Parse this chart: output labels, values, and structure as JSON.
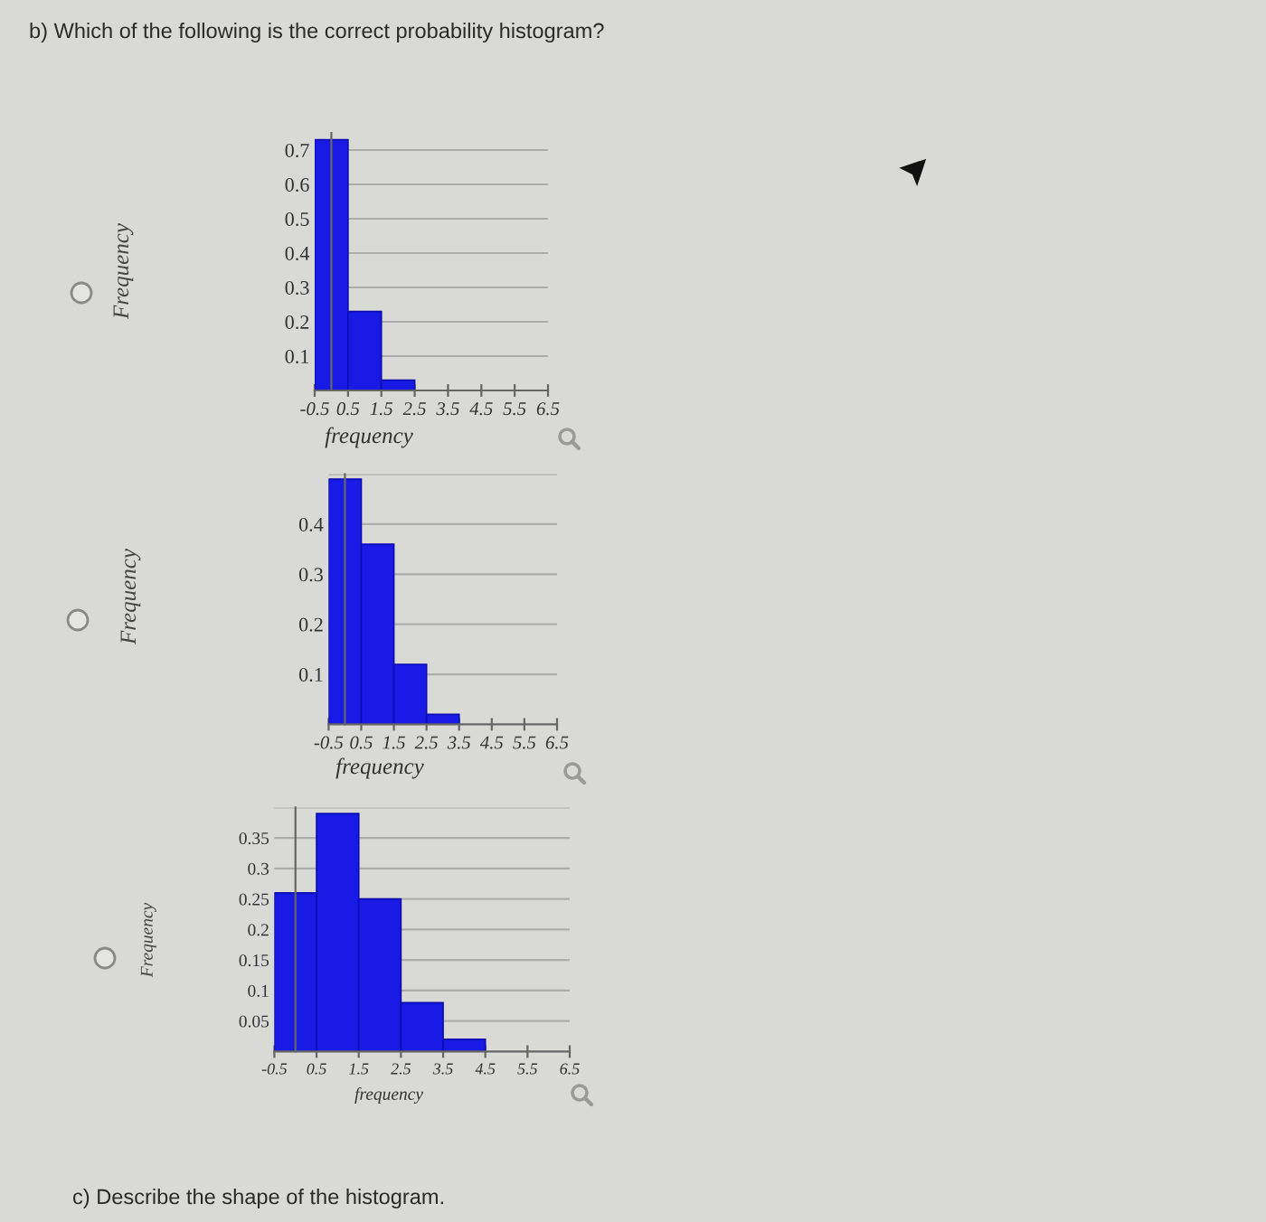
{
  "chart_data": [
    {
      "type": "histogram",
      "title": "b) Which of the following is the correct probability histogram?",
      "xlabel": "frequency",
      "ylabel": "Frequency",
      "bins": [
        -0.5,
        0.5,
        1.5,
        2.5
      ],
      "values": [
        0.73,
        0.23,
        0.03
      ],
      "color": "#1a1ae6",
      "xlim": [
        -0.5,
        6.5
      ],
      "xticks": [
        -0.5,
        0.5,
        1.5,
        2.5,
        3.5,
        4.5,
        5.5,
        6.5
      ],
      "ylim": [
        0,
        0.75
      ],
      "yticks": [
        0.1,
        0.2,
        0.3,
        0.4,
        0.5,
        0.6,
        0.7
      ],
      "grid": "y"
    },
    {
      "type": "histogram",
      "xlabel": "frequency",
      "ylabel": "Frequency",
      "bins": [
        -0.5,
        0.5,
        1.5,
        2.5,
        3.5
      ],
      "values": [
        0.49,
        0.36,
        0.12,
        0.02
      ],
      "color": "#1a1ae6",
      "xlim": [
        -0.5,
        6.5
      ],
      "xticks": [
        -0.5,
        0.5,
        1.5,
        2.5,
        3.5,
        4.5,
        5.5,
        6.5
      ],
      "ylim": [
        0,
        0.5
      ],
      "yticks": [
        0.1,
        0.2,
        0.3,
        0.4,
        {
          "value": 0.5,
          "label": null
        }
      ],
      "grid": "y"
    },
    {
      "type": "histogram",
      "xlabel": "frequency",
      "ylabel": "Frequency",
      "bins": [
        -0.5,
        0.5,
        1.5,
        2.5,
        3.5,
        4.5
      ],
      "values": [
        0.26,
        0.39,
        0.25,
        0.08,
        0.02
      ],
      "color": "#1a1ae6",
      "xlim": [
        -0.5,
        6.5
      ],
      "xticks": [
        -0.5,
        0.5,
        1.5,
        2.5,
        3.5,
        4.5,
        5.5,
        6.5
      ],
      "ylim": [
        0,
        0.4
      ],
      "yticks": [
        0.05,
        0.1,
        0.15,
        0.2,
        0.25,
        0.3,
        0.35,
        {
          "value": 0.4,
          "label": null
        }
      ],
      "grid": "y",
      "annotations": [
        "c) Describe the shape of the histogram."
      ]
    }
  ]
}
